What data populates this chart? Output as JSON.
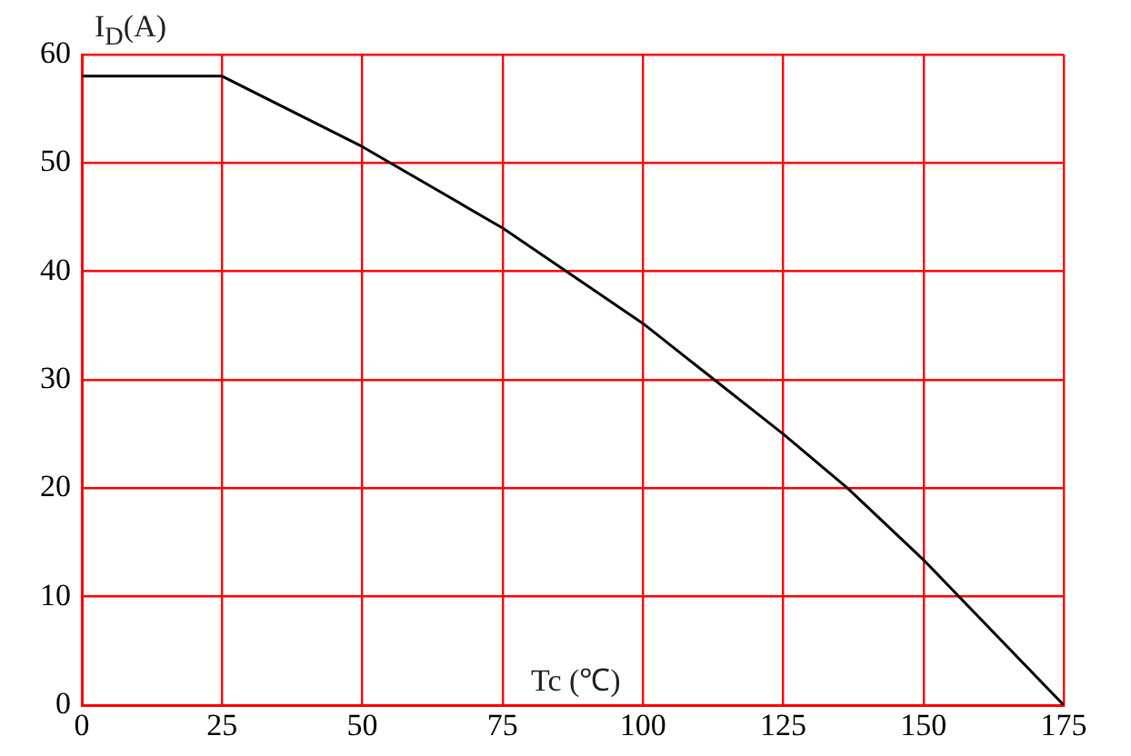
{
  "chart_data": {
    "type": "line",
    "xlabel": "Tc (℃)",
    "ylabel": "I$_{D}$(A)",
    "series": [
      {
        "color": "#000000",
        "x": [
          0,
          25,
          50,
          75,
          100,
          125,
          136.5,
          150,
          175
        ],
        "values": [
          58,
          58,
          51.5,
          44,
          35.2,
          25,
          20,
          13.4,
          0
        ]
      }
    ],
    "xlim": [
      0,
      175
    ],
    "xticks": [
      0,
      25,
      50,
      75,
      100,
      125,
      150,
      175
    ],
    "ylim": [
      0,
      60
    ],
    "yticks": [
      0,
      10,
      20,
      30,
      40,
      50,
      60
    ],
    "grid": true,
    "legend": false,
    "marker": "none",
    "line_style": "solid"
  }
}
